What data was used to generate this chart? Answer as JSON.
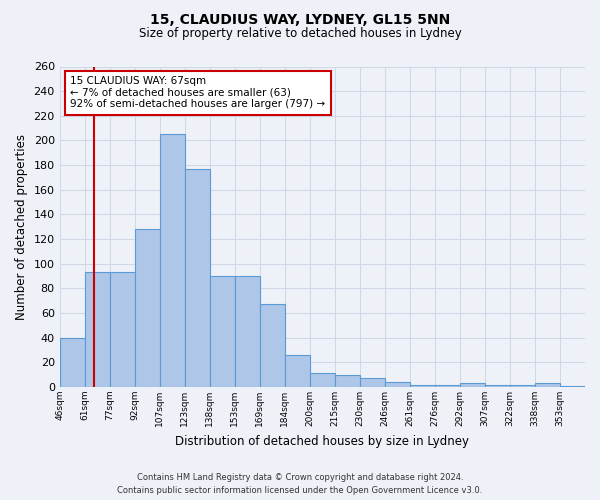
{
  "title": "15, CLAUDIUS WAY, LYDNEY, GL15 5NN",
  "subtitle": "Size of property relative to detached houses in Lydney",
  "xlabel": "Distribution of detached houses by size in Lydney",
  "ylabel": "Number of detached properties",
  "bin_labels": [
    "46sqm",
    "61sqm",
    "77sqm",
    "92sqm",
    "107sqm",
    "123sqm",
    "138sqm",
    "153sqm",
    "169sqm",
    "184sqm",
    "200sqm",
    "215sqm",
    "230sqm",
    "246sqm",
    "261sqm",
    "276sqm",
    "292sqm",
    "307sqm",
    "322sqm",
    "338sqm",
    "353sqm"
  ],
  "bar_values": [
    40,
    93,
    93,
    128,
    205,
    177,
    90,
    90,
    67,
    26,
    11,
    10,
    7,
    4,
    2,
    2,
    3,
    2,
    2,
    3,
    1
  ],
  "bar_color": "#aec6e8",
  "bar_edge_color": "#5b9bd5",
  "grid_color": "#d0d8e8",
  "background_color": "#eef2f8",
  "property_line_bin": 1.4,
  "annotation_title": "15 CLAUDIUS WAY: 67sqm",
  "annotation_line1": "← 7% of detached houses are smaller (63)",
  "annotation_line2": "92% of semi-detached houses are larger (797) →",
  "annotation_box_color": "#ffffff",
  "annotation_box_edge": "#cc0000",
  "red_line_color": "#cc0000",
  "ylim": [
    0,
    260
  ],
  "yticks": [
    0,
    20,
    40,
    60,
    80,
    100,
    120,
    140,
    160,
    180,
    200,
    220,
    240,
    260
  ],
  "footer_line1": "Contains HM Land Registry data © Crown copyright and database right 2024.",
  "footer_line2": "Contains public sector information licensed under the Open Government Licence v3.0."
}
